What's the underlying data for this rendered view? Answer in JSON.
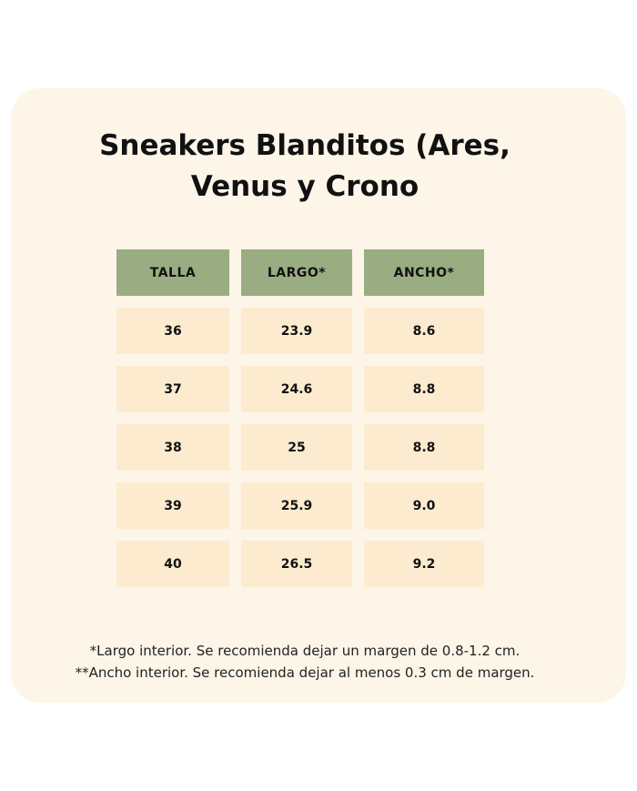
{
  "title": "Sneakers Blanditos (Ares, Venus y Crono",
  "table": {
    "headers": [
      "TALLA",
      "LARGO*",
      "ANCHO*"
    ],
    "rows": [
      [
        "36",
        "23.9",
        "8.6"
      ],
      [
        "37",
        "24.6",
        "8.8"
      ],
      [
        "38",
        "25",
        "8.8"
      ],
      [
        "39",
        "25.9",
        "9.0"
      ],
      [
        "40",
        "26.5",
        "9.2"
      ]
    ]
  },
  "notes": [
    "*Largo interior. Se recomienda dejar un margen de 0.8-1.2 cm.",
    "**Ancho interior. Se recomienda dejar al menos 0.3 cm de margen."
  ],
  "colors": {
    "header": "#9aad82",
    "cell": "#fdebd0",
    "card": "#fdf5e8"
  }
}
